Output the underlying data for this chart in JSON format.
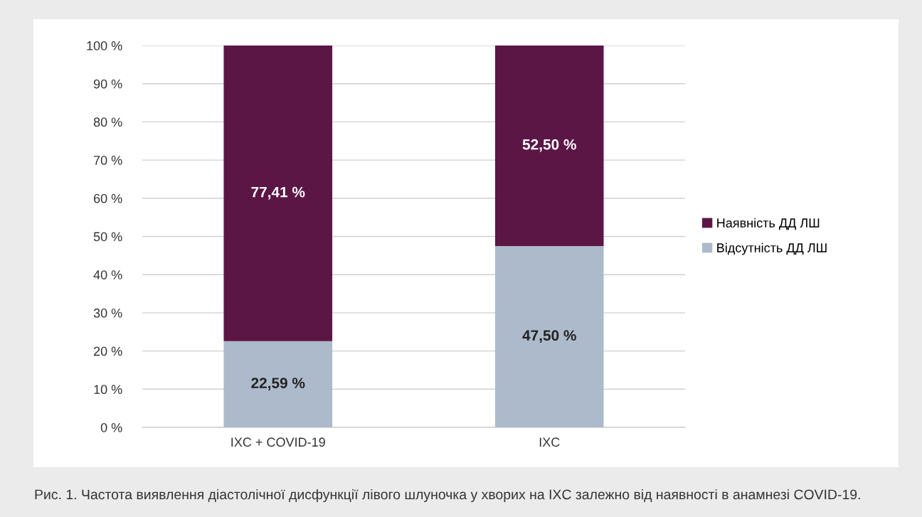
{
  "chart_data": {
    "type": "bar",
    "stacked": true,
    "categories": [
      "IXC + COVID-19",
      "IXC"
    ],
    "series": [
      {
        "name": "Відсутність ДД ЛШ",
        "color": "#adbacb",
        "values": [
          22.59,
          47.5
        ],
        "value_labels": [
          "22,59 %",
          "47,50 %"
        ]
      },
      {
        "name": "Наявність ДД ЛШ",
        "color": "#5c1646",
        "values": [
          77.41,
          52.5
        ],
        "value_labels": [
          "77,41 %",
          "52,50 %"
        ]
      }
    ],
    "ylim": [
      0,
      100
    ],
    "yticks": [
      {
        "value": 0,
        "label": "0 %"
      },
      {
        "value": 10,
        "label": "10 %"
      },
      {
        "value": 20,
        "label": "20 %"
      },
      {
        "value": 30,
        "label": "30 %"
      },
      {
        "value": 40,
        "label": "40 %"
      },
      {
        "value": 50,
        "label": "50 %"
      },
      {
        "value": 60,
        "label": "60 %"
      },
      {
        "value": 70,
        "label": "70 %"
      },
      {
        "value": 80,
        "label": "80 %"
      },
      {
        "value": 90,
        "label": "90 %"
      },
      {
        "value": 100,
        "label": "100 %"
      }
    ],
    "grid": "y",
    "legend": "right",
    "annotations": [
      "Рис. 1. Частота виявлення діастолічної дисфункції лівого шлуночка у хворих на IXC залежно від наявності в анамнезі COVID-19."
    ]
  }
}
